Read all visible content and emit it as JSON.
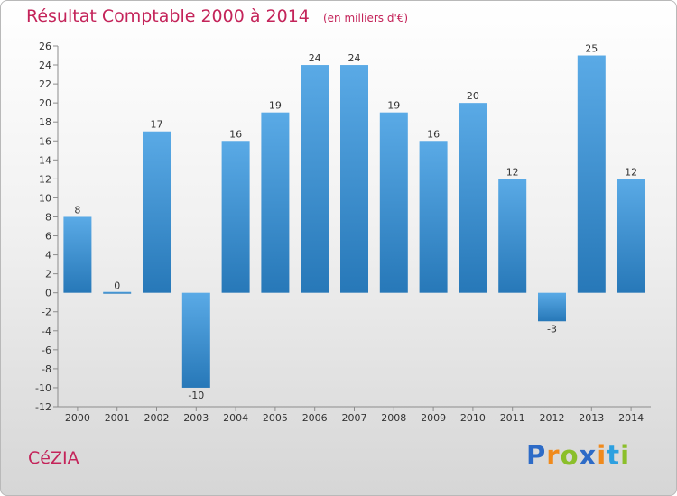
{
  "header": {
    "title": "Résultat Comptable 2000 à 2014",
    "unit": "(en milliers d'€)"
  },
  "commune": "CéZIA",
  "logo": {
    "text": "Proxiti",
    "letters": [
      {
        "ch": "P",
        "color": "#2d6bc7"
      },
      {
        "ch": "r",
        "color": "#f08a1c"
      },
      {
        "ch": "o",
        "color": "#8bbf2a"
      },
      {
        "ch": "x",
        "color": "#2d6bc7"
      },
      {
        "ch": "i",
        "color": "#f08a1c"
      },
      {
        "ch": "t",
        "color": "#2da0e0"
      },
      {
        "ch": "i",
        "color": "#8bbf2a"
      }
    ]
  },
  "colors": {
    "bar_light": "#5aaae6",
    "bar_dark": "#2778b8",
    "axis": "#8c8c8c",
    "title": "#c4245a"
  },
  "chart_data": {
    "type": "bar",
    "title": "Résultat Comptable 2000 à 2014",
    "subtitle": "(en milliers d'€)",
    "xlabel": "",
    "ylabel": "",
    "categories": [
      "2000",
      "2001",
      "2002",
      "2003",
      "2004",
      "2005",
      "2006",
      "2007",
      "2008",
      "2009",
      "2010",
      "2011",
      "2012",
      "2013",
      "2014"
    ],
    "values": [
      8,
      0,
      17,
      -10,
      16,
      19,
      24,
      24,
      19,
      16,
      20,
      12,
      -3,
      25,
      12
    ],
    "ylim": [
      -12,
      26
    ],
    "ytick_step": 2,
    "grid": false,
    "legend": "none"
  }
}
